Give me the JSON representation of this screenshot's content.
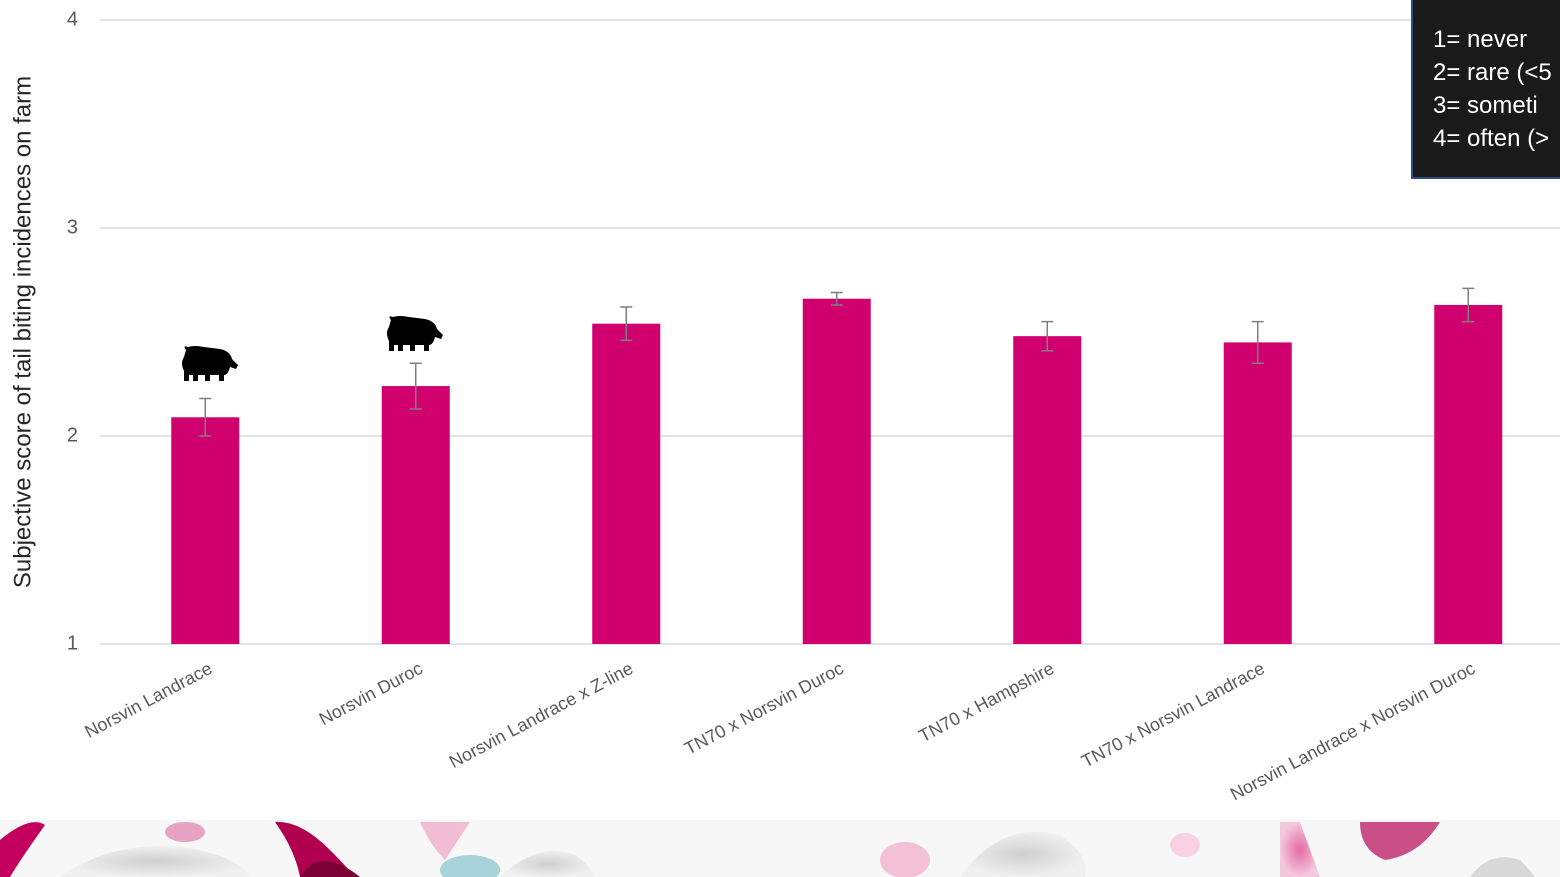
{
  "chart_data": {
    "type": "bar",
    "y_label": "Subjective score of tail biting incidences on farm",
    "categories": [
      "Norsvin Landrace",
      "Norsvin Duroc",
      "Norsvin Landrace x Z-line",
      "TN70 x Norsvin Duroc",
      "TN70 x Hampshire",
      "TN70 x Norsvin Landrace",
      "Norsvin Landrace x Norsvin Duroc"
    ],
    "values": [
      2.09,
      2.24,
      2.54,
      2.66,
      2.48,
      2.45,
      2.63
    ],
    "errors": [
      0.09,
      0.11,
      0.08,
      0.03,
      0.07,
      0.1,
      0.08
    ],
    "color": "#d1006f",
    "ylim": [
      1,
      4
    ],
    "yticks": [
      1,
      2,
      3,
      4
    ],
    "grid": true,
    "annotation_lines": [
      "1= never",
      "2= rare (<5",
      "3= someti",
      "4= often (>"
    ]
  }
}
